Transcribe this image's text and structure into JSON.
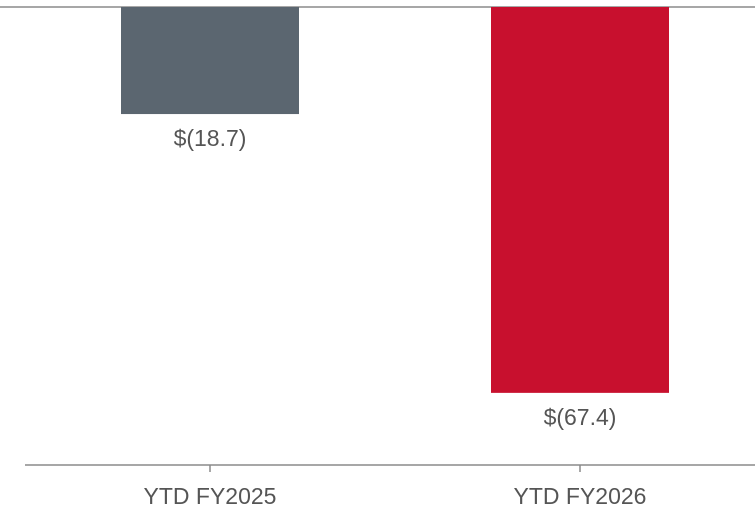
{
  "chart_data": {
    "type": "bar",
    "categories": [
      "YTD FY2025",
      "YTD FY2026"
    ],
    "values": [
      -18.7,
      -67.4
    ],
    "value_labels": [
      "$(18.7)",
      "$(67.4)"
    ],
    "colors": [
      "#5b6670",
      "#c8102e"
    ],
    "ylim": [
      -80,
      0
    ]
  }
}
